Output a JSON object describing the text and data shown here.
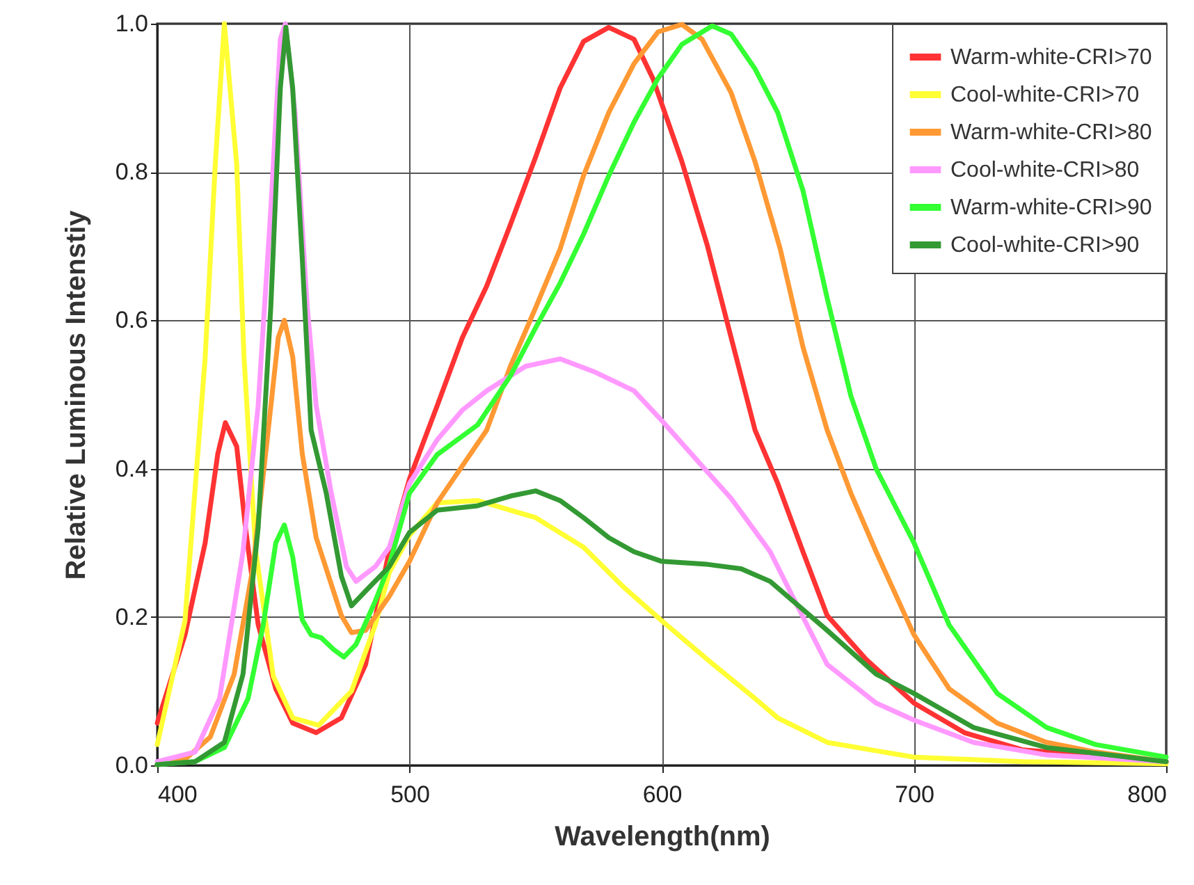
{
  "chart_data": {
    "type": "line",
    "xlabel": "Wavelength(nm)",
    "ylabel": "Relative Luminous Intenstiy",
    "xlim": [
      400,
      800
    ],
    "xticks": [
      400,
      500,
      600,
      700,
      800
    ],
    "ylim": [
      0,
      1
    ],
    "yticks": [
      {
        "value": 0,
        "label": "0.0"
      },
      {
        "value": 0.2,
        "label": "0.2"
      },
      {
        "value": 0.4,
        "label": "0.4"
      },
      {
        "value": 0.6,
        "label": "0.6"
      },
      {
        "value": 0.8,
        "label": "0.8"
      },
      {
        "value": 1,
        "label": "1.0"
      }
    ],
    "grid": true,
    "legend": "top right",
    "line_style": "solid",
    "series": [
      {
        "name": "Warm-white-CRI>70",
        "color": "#ff3333",
        "x": [
          400,
          411,
          419,
          424,
          427,
          431.5,
          435,
          440,
          447,
          453.7,
          463,
          473,
          482.6,
          492,
          500,
          511,
          521,
          530.6,
          540,
          550,
          559.7,
          569,
          579,
          589,
          596.5,
          608,
          618,
          627.5,
          637,
          646,
          656,
          665.6,
          681,
          700,
          720,
          743,
          800
        ],
        "values": [
          0.057,
          0.176,
          0.3,
          0.42,
          0.462,
          0.43,
          0.32,
          0.19,
          0.103,
          0.057,
          0.044,
          0.064,
          0.136,
          0.29,
          0.386,
          0.485,
          0.577,
          0.646,
          0.729,
          0.82,
          0.913,
          0.976,
          0.995,
          0.979,
          0.926,
          0.814,
          0.702,
          0.577,
          0.452,
          0.38,
          0.288,
          0.202,
          0.143,
          0.084,
          0.044,
          0.021,
          0.005
        ]
      },
      {
        "name": "Cool-white-CRI>70",
        "color": "#ffff33",
        "x": [
          400,
          411,
          419,
          423,
          426.6,
          431.5,
          434.4,
          439,
          446,
          453.7,
          464,
          477,
          486.5,
          492,
          500,
          511,
          527,
          550,
          569,
          585,
          600,
          618,
          637,
          646,
          665.6,
          700,
          743,
          800
        ],
        "values": [
          0.028,
          0.195,
          0.55,
          0.81,
          1.0,
          0.81,
          0.55,
          0.29,
          0.12,
          0.064,
          0.054,
          0.1,
          0.19,
          0.26,
          0.31,
          0.354,
          0.357,
          0.334,
          0.294,
          0.24,
          0.195,
          0.143,
          0.09,
          0.064,
          0.031,
          0.011,
          0.005,
          0.002
        ]
      },
      {
        "name": "Warm-white-CRI>80",
        "color": "#ff9933",
        "x": [
          400,
          411,
          421,
          430.5,
          438,
          444,
          448,
          450.4,
          453.7,
          457.5,
          463,
          473,
          477,
          482.6,
          492,
          500,
          511,
          530.6,
          540,
          550,
          559.7,
          569,
          579,
          589,
          598.6,
          608,
          616,
          627.5,
          637,
          647,
          656,
          665.6,
          675,
          685,
          700,
          714,
          733,
          752.6,
          772,
          800
        ],
        "values": [
          0.001,
          0.008,
          0.038,
          0.123,
          0.268,
          0.452,
          0.577,
          0.6,
          0.551,
          0.42,
          0.307,
          0.202,
          0.179,
          0.182,
          0.228,
          0.275,
          0.354,
          0.452,
          0.538,
          0.617,
          0.696,
          0.795,
          0.88,
          0.946,
          0.989,
          0.999,
          0.979,
          0.907,
          0.814,
          0.696,
          0.564,
          0.452,
          0.367,
          0.288,
          0.176,
          0.103,
          0.057,
          0.031,
          0.018,
          0.005
        ]
      },
      {
        "name": "Cool-white-CRI>80",
        "color": "#ff99ff",
        "x": [
          400,
          415,
          424.7,
          434,
          440,
          445,
          448.8,
          450.8,
          454.6,
          459.5,
          463,
          469,
          475,
          478.8,
          486.5,
          492,
          500,
          511,
          521,
          530.6,
          546,
          559.7,
          573,
          589,
          600,
          612,
          627.5,
          643,
          656,
          665.6,
          685,
          700,
          723.6,
          752.6,
          800
        ],
        "values": [
          0.005,
          0.018,
          0.09,
          0.288,
          0.485,
          0.749,
          0.979,
          1.0,
          0.88,
          0.617,
          0.485,
          0.367,
          0.268,
          0.248,
          0.268,
          0.294,
          0.38,
          0.439,
          0.479,
          0.505,
          0.538,
          0.548,
          0.531,
          0.505,
          0.465,
          0.419,
          0.36,
          0.288,
          0.2,
          0.136,
          0.084,
          0.061,
          0.031,
          0.014,
          0.005
        ]
      },
      {
        "name": "Warm-white-CRI>90",
        "color": "#33ff33",
        "x": [
          400,
          415,
          426.6,
          436,
          442,
          447,
          450.4,
          453.7,
          457.5,
          461,
          465,
          470,
          474,
          478.8,
          486.5,
          492,
          500,
          511,
          527,
          540,
          550,
          559.7,
          569,
          579,
          589,
          598.5,
          608,
          620,
          627.5,
          637,
          646,
          656,
          665.6,
          675,
          685,
          700,
          714,
          733,
          752.6,
          772,
          800
        ],
        "values": [
          0.001,
          0.005,
          0.024,
          0.09,
          0.189,
          0.3,
          0.324,
          0.281,
          0.196,
          0.176,
          0.172,
          0.156,
          0.146,
          0.163,
          0.222,
          0.27,
          0.367,
          0.419,
          0.459,
          0.525,
          0.59,
          0.65,
          0.716,
          0.795,
          0.867,
          0.926,
          0.972,
          0.997,
          0.986,
          0.939,
          0.88,
          0.775,
          0.63,
          0.498,
          0.4,
          0.3,
          0.189,
          0.097,
          0.051,
          0.028,
          0.011
        ]
      },
      {
        "name": "Cool-white-CRI>90",
        "color": "#339933",
        "x": [
          400,
          415,
          426.6,
          434,
          440,
          445,
          448.8,
          451,
          453.7,
          457.5,
          461,
          467,
          473,
          477,
          482.6,
          492,
          500,
          511,
          527,
          540,
          550,
          559.7,
          569,
          579,
          589,
          600,
          618,
          631.5,
          643,
          665.6,
          685,
          700,
          723.6,
          752.6,
          800
        ],
        "values": [
          0.001,
          0.005,
          0.031,
          0.123,
          0.32,
          0.617,
          0.913,
          0.995,
          0.913,
          0.683,
          0.452,
          0.367,
          0.255,
          0.215,
          0.235,
          0.268,
          0.314,
          0.344,
          0.35,
          0.363,
          0.37,
          0.357,
          0.334,
          0.307,
          0.288,
          0.275,
          0.271,
          0.265,
          0.248,
          0.182,
          0.123,
          0.097,
          0.051,
          0.024,
          0.005
        ]
      }
    ]
  }
}
